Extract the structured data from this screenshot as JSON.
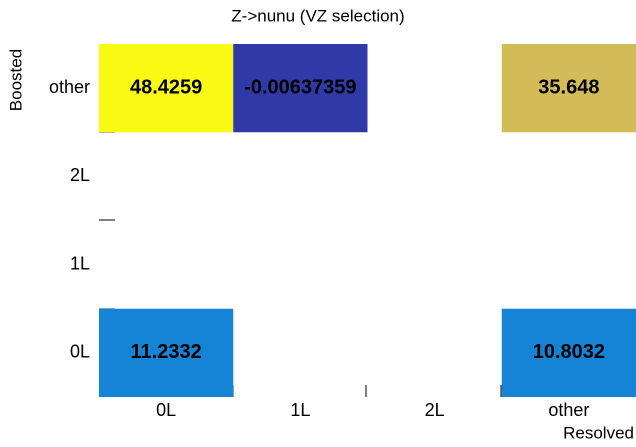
{
  "chart_data": {
    "type": "heatmap",
    "title": "Z->nunu (VZ selection)",
    "x_label": "Resolved",
    "y_label": "Boosted",
    "x_categories": [
      "0L",
      "1L",
      "2L",
      "other"
    ],
    "y_categories": [
      "0L",
      "1L",
      "2L",
      "other"
    ],
    "values": [
      [
        11.2332,
        null,
        null,
        10.8032
      ],
      [
        null,
        null,
        null,
        null
      ],
      [
        null,
        null,
        null,
        null
      ],
      [
        48.4259,
        -0.00637359,
        null,
        35.648
      ]
    ],
    "colors": [
      [
        "#1584d6",
        null,
        null,
        "#1584d6"
      ],
      [
        null,
        null,
        null,
        null
      ],
      [
        null,
        null,
        null,
        null
      ],
      [
        "#f9fa14",
        "#2f3aa8",
        null,
        "#d3bb58"
      ]
    ]
  }
}
